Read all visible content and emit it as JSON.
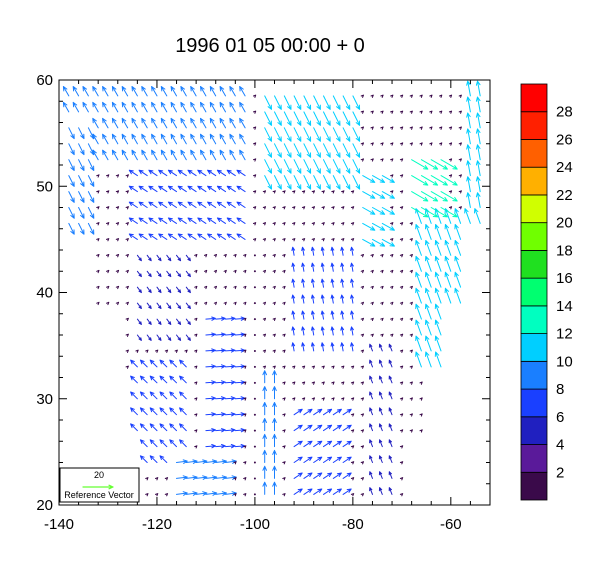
{
  "chart_data": {
    "type": "vector-field",
    "title": "1996 01 05 00:00 + 0",
    "xlim": [
      -140,
      -52
    ],
    "ylim": [
      20,
      60
    ],
    "x_ticks": [
      -140,
      -120,
      -100,
      -80,
      -60
    ],
    "x_tick_labels": [
      "-140",
      "-120",
      "-100",
      "-80",
      "-60"
    ],
    "y_ticks": [
      20,
      30,
      40,
      50,
      60
    ],
    "y_tick_labels": [
      "20",
      "30",
      "40",
      "50",
      "60"
    ],
    "grid": false,
    "colorbar": {
      "placement": "right",
      "levels": [
        2,
        4,
        6,
        8,
        10,
        12,
        14,
        16,
        18,
        20,
        22,
        24,
        26,
        28
      ],
      "labels": [
        "2",
        "4",
        "6",
        "8",
        "10",
        "12",
        "14",
        "16",
        "18",
        "20",
        "22",
        "24",
        "26",
        "28"
      ],
      "colors": [
        "#3a0a4a",
        "#5a1a9a",
        "#2020c0",
        "#1a40ff",
        "#1a7fff",
        "#00cfff",
        "#00ffc0",
        "#00ff70",
        "#20e020",
        "#70ff00",
        "#d0ff00",
        "#ffb000",
        "#ff6000",
        "#ff2000",
        "#ff0000"
      ]
    },
    "reference_vector": {
      "magnitude": "20",
      "label": "Reference Vector",
      "color": "#66ff33"
    },
    "vectors": []
  }
}
